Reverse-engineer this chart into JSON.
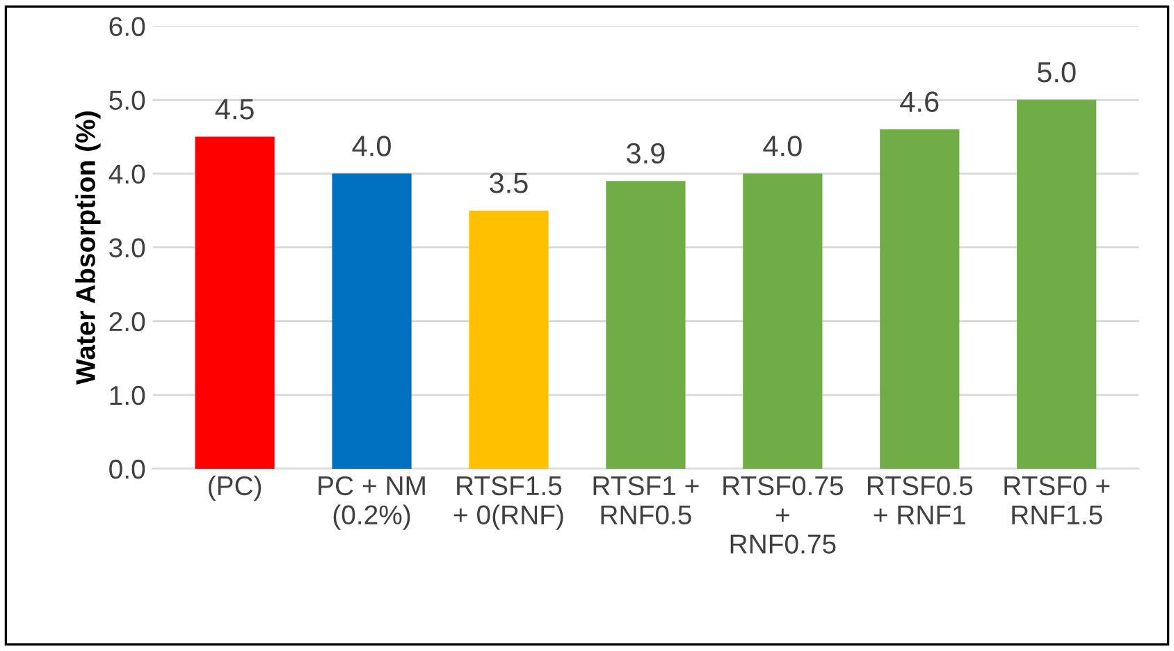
{
  "chart_data": {
    "type": "bar",
    "ylabel": "Water Absorption (%)",
    "categories": [
      "(PC)",
      "PC + NM\n(0.2%)",
      "RTSF1.5\n+ 0(RNF)",
      "RTSF1 +\nRNF0.5",
      "RTSF0.75\n+\nRNF0.75",
      "RTSF0.5\n+ RNF1",
      "RTSF0 +\nRNF1.5"
    ],
    "values": [
      4.5,
      4.0,
      3.5,
      3.9,
      4.0,
      4.6,
      5.0
    ],
    "value_labels": [
      "4.5",
      "4.0",
      "3.5",
      "3.9",
      "4.0",
      "4.6",
      "5.0"
    ],
    "colors": [
      "#ff0000",
      "#0070c0",
      "#ffc000",
      "#70ad47",
      "#70ad47",
      "#70ad47",
      "#70ad47"
    ],
    "ylim": [
      0,
      6
    ],
    "yticks": [
      {
        "value": 0,
        "label": "0.0"
      },
      {
        "value": 1,
        "label": "1.0"
      },
      {
        "value": 2,
        "label": "2.0"
      },
      {
        "value": 3,
        "label": "3.0"
      },
      {
        "value": 4,
        "label": "4.0"
      },
      {
        "value": 5,
        "label": "5.0"
      },
      {
        "value": 6,
        "label": "6.0"
      }
    ],
    "grid": "y"
  }
}
